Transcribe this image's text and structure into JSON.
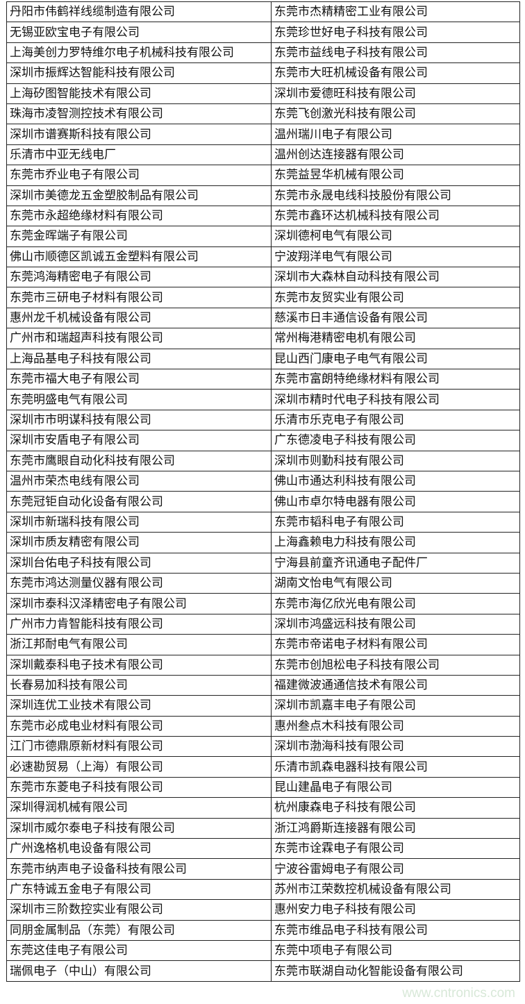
{
  "rows": [
    [
      "丹阳市伟鹤祥线缆制造有限公司",
      "东莞市杰精精密工业有限公司"
    ],
    [
      "无锡亚欧宝电子有限公司",
      "东莞珍世好电子科技有限公司"
    ],
    [
      "上海美创力罗特维尔电子机械科技有限公司",
      "东莞市益线电子科技有限公司"
    ],
    [
      "深圳市振辉达智能科技有限公司",
      "东莞市大旺机械设备有限公司"
    ],
    [
      "上海矽图智能技术有限公司",
      "深圳市爱德旺科技有限公司"
    ],
    [
      "珠海市凌智测控技术有限公司",
      "东莞飞创激光科技有限公司"
    ],
    [
      "深圳市谱赛斯科技有限公司",
      "温州瑞川电子有限公司"
    ],
    [
      "乐清市中亚无线电厂",
      "温州创达连接器有限公司"
    ],
    [
      "东莞市乔业电子有限公司",
      "东莞益昱华机械有限公司"
    ],
    [
      "深圳市美德龙五金塑胶制品有限公司",
      "东莞市永晟电线科技股份有限公司"
    ],
    [
      "东莞市永超绝缘材料有限公司",
      "东莞市鑫环达机械科技有限公司"
    ],
    [
      "东莞金晖端子有限公司",
      "深圳德柯电气有限公司"
    ],
    [
      "佛山市顺德区凯诚五金塑料有限公司",
      "宁波翔洋电气有限公司"
    ],
    [
      "东莞鸿海精密电子有限公司",
      "深圳市大森林自动科技有限公司"
    ],
    [
      "东莞市三研电子材料有限公司",
      "东莞市友贸实业有限公司"
    ],
    [
      "惠州龙千机械设备有限公司",
      "慈溪市日丰通信设备有限公司"
    ],
    [
      "广州市和瑞超声科技有限公司",
      "常州梅港精密电机有限公司"
    ],
    [
      "上海品基电子科技有限公司",
      "昆山西门康电子电气有限公司"
    ],
    [
      "东莞市福大电子有限公司",
      "东莞市富朗特绝缘材料有限公司"
    ],
    [
      "东莞明盛电气有限公司",
      "深圳市精时代电子科技有限公司"
    ],
    [
      "深圳市市明谋科技有限公司",
      "乐清市乐克电子有限公司"
    ],
    [
      "深圳市安盾电子有限公司",
      "广东德凌电子科技有限公司"
    ],
    [
      "东莞市鹰眼自动化科技有限公司",
      "深圳市则勤科技有限公司"
    ],
    [
      "温州市荣杰电线有限公司",
      "佛山市通达利科技有限公司"
    ],
    [
      "东莞冠钜自动化设备有限公司",
      "佛山市卓尔特电器有限公司"
    ],
    [
      "深圳市新瑞科技有限公司",
      "东莞市韬科电子有限公司"
    ],
    [
      "深圳市质友精密有限公司",
      "上海鑫赖电力科技有限公司"
    ],
    [
      "深圳台佑电子科技有限公司",
      "宁海县前童齐讯通电子配件厂"
    ],
    [
      "东莞市鸿达测量仪器有限公司",
      "湖南文怡电气有限公司"
    ],
    [
      "深圳市泰科汉泽精密电子有限公司",
      "东莞市海亿欣光电有限公司"
    ],
    [
      "广州市力肯智能科技有限公司",
      "深圳市鸿盛远科技有限公司"
    ],
    [
      "浙江邦耐电气有限公司",
      "东莞市帝诺电子材料有限公司"
    ],
    [
      "深圳戴泰科电子技术有限公司",
      "东莞市创旭松电子科技有限公司"
    ],
    [
      "长春易加科技有限公司",
      "福建微波通通信技术有限公司"
    ],
    [
      "深圳连优工业技术有限公司",
      "深圳市凯嘉丰电子有限公司"
    ],
    [
      "东莞市必成电业材料有限公司",
      "惠州叁点木科技有限公司"
    ],
    [
      "江门市德鼎原新材料有限公司",
      "深圳市渤海科技有限公司"
    ],
    [
      "必速勘贸易（上海）有限公司",
      "乐清市凯森电器科技有限公司"
    ],
    [
      "东莞市东菱电子科技有限公司",
      "昆山建晶电子有限公司"
    ],
    [
      "深圳得润机械有限公司",
      "杭州康森电子科技有限公司"
    ],
    [
      "深圳市威尔泰电子科技有限公司",
      "浙江鸿爵斯连接器有限公司"
    ],
    [
      "广州逸格机电设备有限公司",
      "东莞市诠霖电子有限公司"
    ],
    [
      "东莞市纳声电子设备科技有限公司",
      "宁波谷雷姆电子有限公司"
    ],
    [
      "广东特诚五金电子有限公司",
      "苏州市江荣数控机械设备有限公司"
    ],
    [
      "深圳市三阶数控实业有限公司",
      "惠州安力电子科技有限公司"
    ],
    [
      "同朋金属制品（东莞）有限公司",
      "东莞市维品电子科技有限公司"
    ],
    [
      "东莞这佳电子有限公司",
      "东莞中项电子有限公司"
    ],
    [
      "瑞佩电子（中山）有限公司",
      "东莞市联湖自动化智能设备有限公司"
    ]
  ],
  "watermark": "www.cntronics.com"
}
